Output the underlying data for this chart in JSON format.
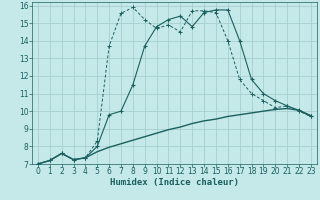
{
  "xlabel": "Humidex (Indice chaleur)",
  "bg_color": "#c5e8e8",
  "grid_color": "#a8d0d0",
  "line_color": "#1a6060",
  "xlim": [
    -0.5,
    23.5
  ],
  "ylim": [
    7,
    16.2
  ],
  "xticks": [
    0,
    1,
    2,
    3,
    4,
    5,
    6,
    7,
    8,
    9,
    10,
    11,
    12,
    13,
    14,
    15,
    16,
    17,
    18,
    19,
    20,
    21,
    22,
    23
  ],
  "yticks": [
    7,
    8,
    9,
    10,
    11,
    12,
    13,
    14,
    15,
    16
  ],
  "curve1_x": [
    0,
    1,
    2,
    3,
    4,
    5,
    6,
    7,
    8,
    9,
    10,
    11,
    12,
    13,
    14,
    15,
    16,
    17,
    18,
    19,
    20,
    21,
    22,
    23
  ],
  "curve1_y": [
    7.0,
    7.2,
    7.6,
    7.25,
    7.35,
    8.0,
    9.8,
    10.0,
    11.5,
    13.7,
    14.8,
    15.2,
    15.4,
    14.8,
    15.6,
    15.75,
    15.75,
    14.0,
    11.8,
    11.0,
    10.6,
    10.3,
    10.05,
    9.7
  ],
  "curve2_x": [
    0,
    1,
    2,
    3,
    4,
    5,
    6,
    7,
    8,
    9,
    10,
    11,
    12,
    13,
    14,
    15,
    16,
    17,
    18,
    19,
    20,
    21,
    22,
    23
  ],
  "curve2_y": [
    7.0,
    7.2,
    7.6,
    7.25,
    7.35,
    8.3,
    13.7,
    15.55,
    15.9,
    15.2,
    14.7,
    14.9,
    14.5,
    15.7,
    15.7,
    15.6,
    14.0,
    11.8,
    11.0,
    10.6,
    10.2,
    10.3,
    10.0,
    9.7
  ],
  "curve3_x": [
    0,
    1,
    2,
    3,
    4,
    5,
    6,
    7,
    8,
    9,
    10,
    11,
    12,
    13,
    14,
    15,
    16,
    17,
    18,
    19,
    20,
    21,
    22,
    23
  ],
  "curve3_y": [
    7.0,
    7.2,
    7.6,
    7.25,
    7.35,
    7.7,
    7.95,
    8.15,
    8.35,
    8.55,
    8.75,
    8.95,
    9.1,
    9.3,
    9.45,
    9.55,
    9.7,
    9.8,
    9.9,
    10.0,
    10.1,
    10.15,
    10.05,
    9.75
  ],
  "tick_fontsize": 5.5,
  "xlabel_fontsize": 6.5
}
